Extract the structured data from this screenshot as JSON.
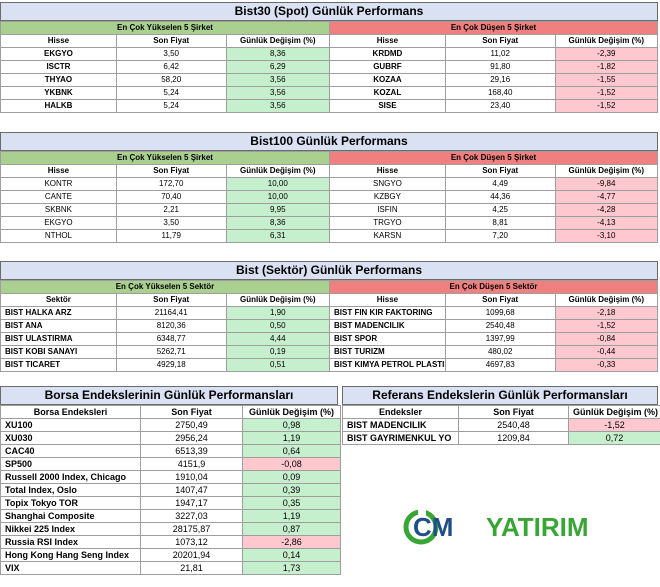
{
  "sections": [
    {
      "title": "Bist30 (Spot) Günlük Performans",
      "left_label": "En Çok Yükselen 5 Şirket",
      "right_label": "En Çok Düşen 5 Şirket",
      "cols": [
        "Hisse",
        "Son Fiyat",
        "Günlük Değişim (%)"
      ],
      "name_bold": true,
      "gainers": [
        [
          "EKGYO",
          "3,50",
          "8,36"
        ],
        [
          "ISCTR",
          "6,42",
          "6,29"
        ],
        [
          "THYAO",
          "58,20",
          "3,56"
        ],
        [
          "YKBNK",
          "5,24",
          "3,56"
        ],
        [
          "HALKB",
          "5,24",
          "3,56"
        ]
      ],
      "losers": [
        [
          "KRDMD",
          "11,02",
          "-2,39"
        ],
        [
          "GUBRF",
          "91,80",
          "-1,82"
        ],
        [
          "KOZAA",
          "29,16",
          "-1,55"
        ],
        [
          "KOZAL",
          "168,40",
          "-1,52"
        ],
        [
          "SISE",
          "23,40",
          "-1,52"
        ]
      ]
    },
    {
      "title": "Bist100 Günlük Performans",
      "left_label": "En Çok Yükselen 5 Şirket",
      "right_label": "En Çok Düşen 5 Şirket",
      "cols": [
        "Hisse",
        "Son Fiyat",
        "Günlük Değişim (%)"
      ],
      "name_bold": false,
      "gainers": [
        [
          "KONTR",
          "172,70",
          "10,00"
        ],
        [
          "CANTE",
          "70,40",
          "10,00"
        ],
        [
          "SKBNK",
          "2,21",
          "9,95"
        ],
        [
          "EKGYO",
          "3,50",
          "8,36"
        ],
        [
          "NTHOL",
          "11,79",
          "6,31"
        ]
      ],
      "losers": [
        [
          "SNGYO",
          "4,49",
          "-9,84"
        ],
        [
          "KZBGY",
          "44,36",
          "-4,77"
        ],
        [
          "ISFIN",
          "4,25",
          "-4,28"
        ],
        [
          "TRGYO",
          "8,81",
          "-4,13"
        ],
        [
          "KARSN",
          "7,20",
          "-3,10"
        ]
      ]
    },
    {
      "title": "Bist (Sektör) Günlük Performans",
      "left_label": "En Çok Yükselen 5 Sektör",
      "right_label": "En Çok Düşen 5 Sektör",
      "cols": [
        "Sektör",
        "Son Fiyat",
        "Günlük Değişim (%)"
      ],
      "right_cols": [
        "Hisse",
        "Son Fiyat",
        "Günlük Değişim (%)"
      ],
      "name_bold": true,
      "name_left": true,
      "gainers": [
        [
          "BIST HALKA ARZ",
          "21164,41",
          "1,90"
        ],
        [
          "BIST ANA",
          "8120,36",
          "0,50"
        ],
        [
          "BIST ULASTIRMA",
          "6348,77",
          "4,44"
        ],
        [
          "BIST KOBI SANAYI",
          "5262,71",
          "0,19"
        ],
        [
          "BIST TICARET",
          "4929,18",
          "0,51"
        ]
      ],
      "losers": [
        [
          "BIST FIN KIR FAKTORING",
          "1099,68",
          "-2,18"
        ],
        [
          "BIST MADENCILIK",
          "2540,48",
          "-1,52"
        ],
        [
          "BIST SPOR",
          "1397,99",
          "-0,84"
        ],
        [
          "BIST TURIZM",
          "480,02",
          "-0,44"
        ],
        [
          "BIST KIMYA PETROL PLASTIK",
          "4697,83",
          "-0,33"
        ]
      ]
    }
  ],
  "borsa": {
    "title": "Borsa Endekslerinin Günlük Performansları",
    "cols": [
      "Borsa Endeksleri",
      "Son Fiyat",
      "Günlük Değişim (%)"
    ],
    "rows": [
      [
        "XU100",
        "2750,49",
        "0,98"
      ],
      [
        "XU030",
        "2956,24",
        "1,19"
      ],
      [
        "CAC40",
        "6513,39",
        "0,64"
      ],
      [
        "SP500",
        "4151,9",
        "-0,08"
      ],
      [
        "Russell 2000 Index, Chicago",
        "1910,04",
        "0,09"
      ],
      [
        "Total Index, Oslo",
        "1407,47",
        "0,39"
      ],
      [
        "Topix Tokyo TOR",
        "1947,17",
        "0,35"
      ],
      [
        "Shanghai Composite",
        "3227,03",
        "1,19"
      ],
      [
        "Nikkei 225 Index",
        "28175,87",
        "0,87"
      ],
      [
        "Russia RSI Index",
        "1073,12",
        "-2,86"
      ],
      [
        "Hong Kong Hang Seng Index",
        "20201,94",
        "0,14"
      ],
      [
        "VIX",
        "21,81",
        "1,73"
      ]
    ]
  },
  "referans": {
    "title": "Referans Endekslerin  Günlük Performansları",
    "cols": [
      "Endeksler",
      "Son Fiyat",
      "Günlük Değişim (%)"
    ],
    "rows": [
      [
        "BIST MADENCILIK",
        "2540,48",
        "-1,52"
      ],
      [
        "BIST GAYRIMENKUL YO",
        "1209,84",
        "0,72"
      ]
    ]
  },
  "logo": {
    "text_gcm": "GCM",
    "text_yatirim": "YATIRIM",
    "color_gcm": "#1f4f8b",
    "color_yatirim": "#38a535"
  }
}
